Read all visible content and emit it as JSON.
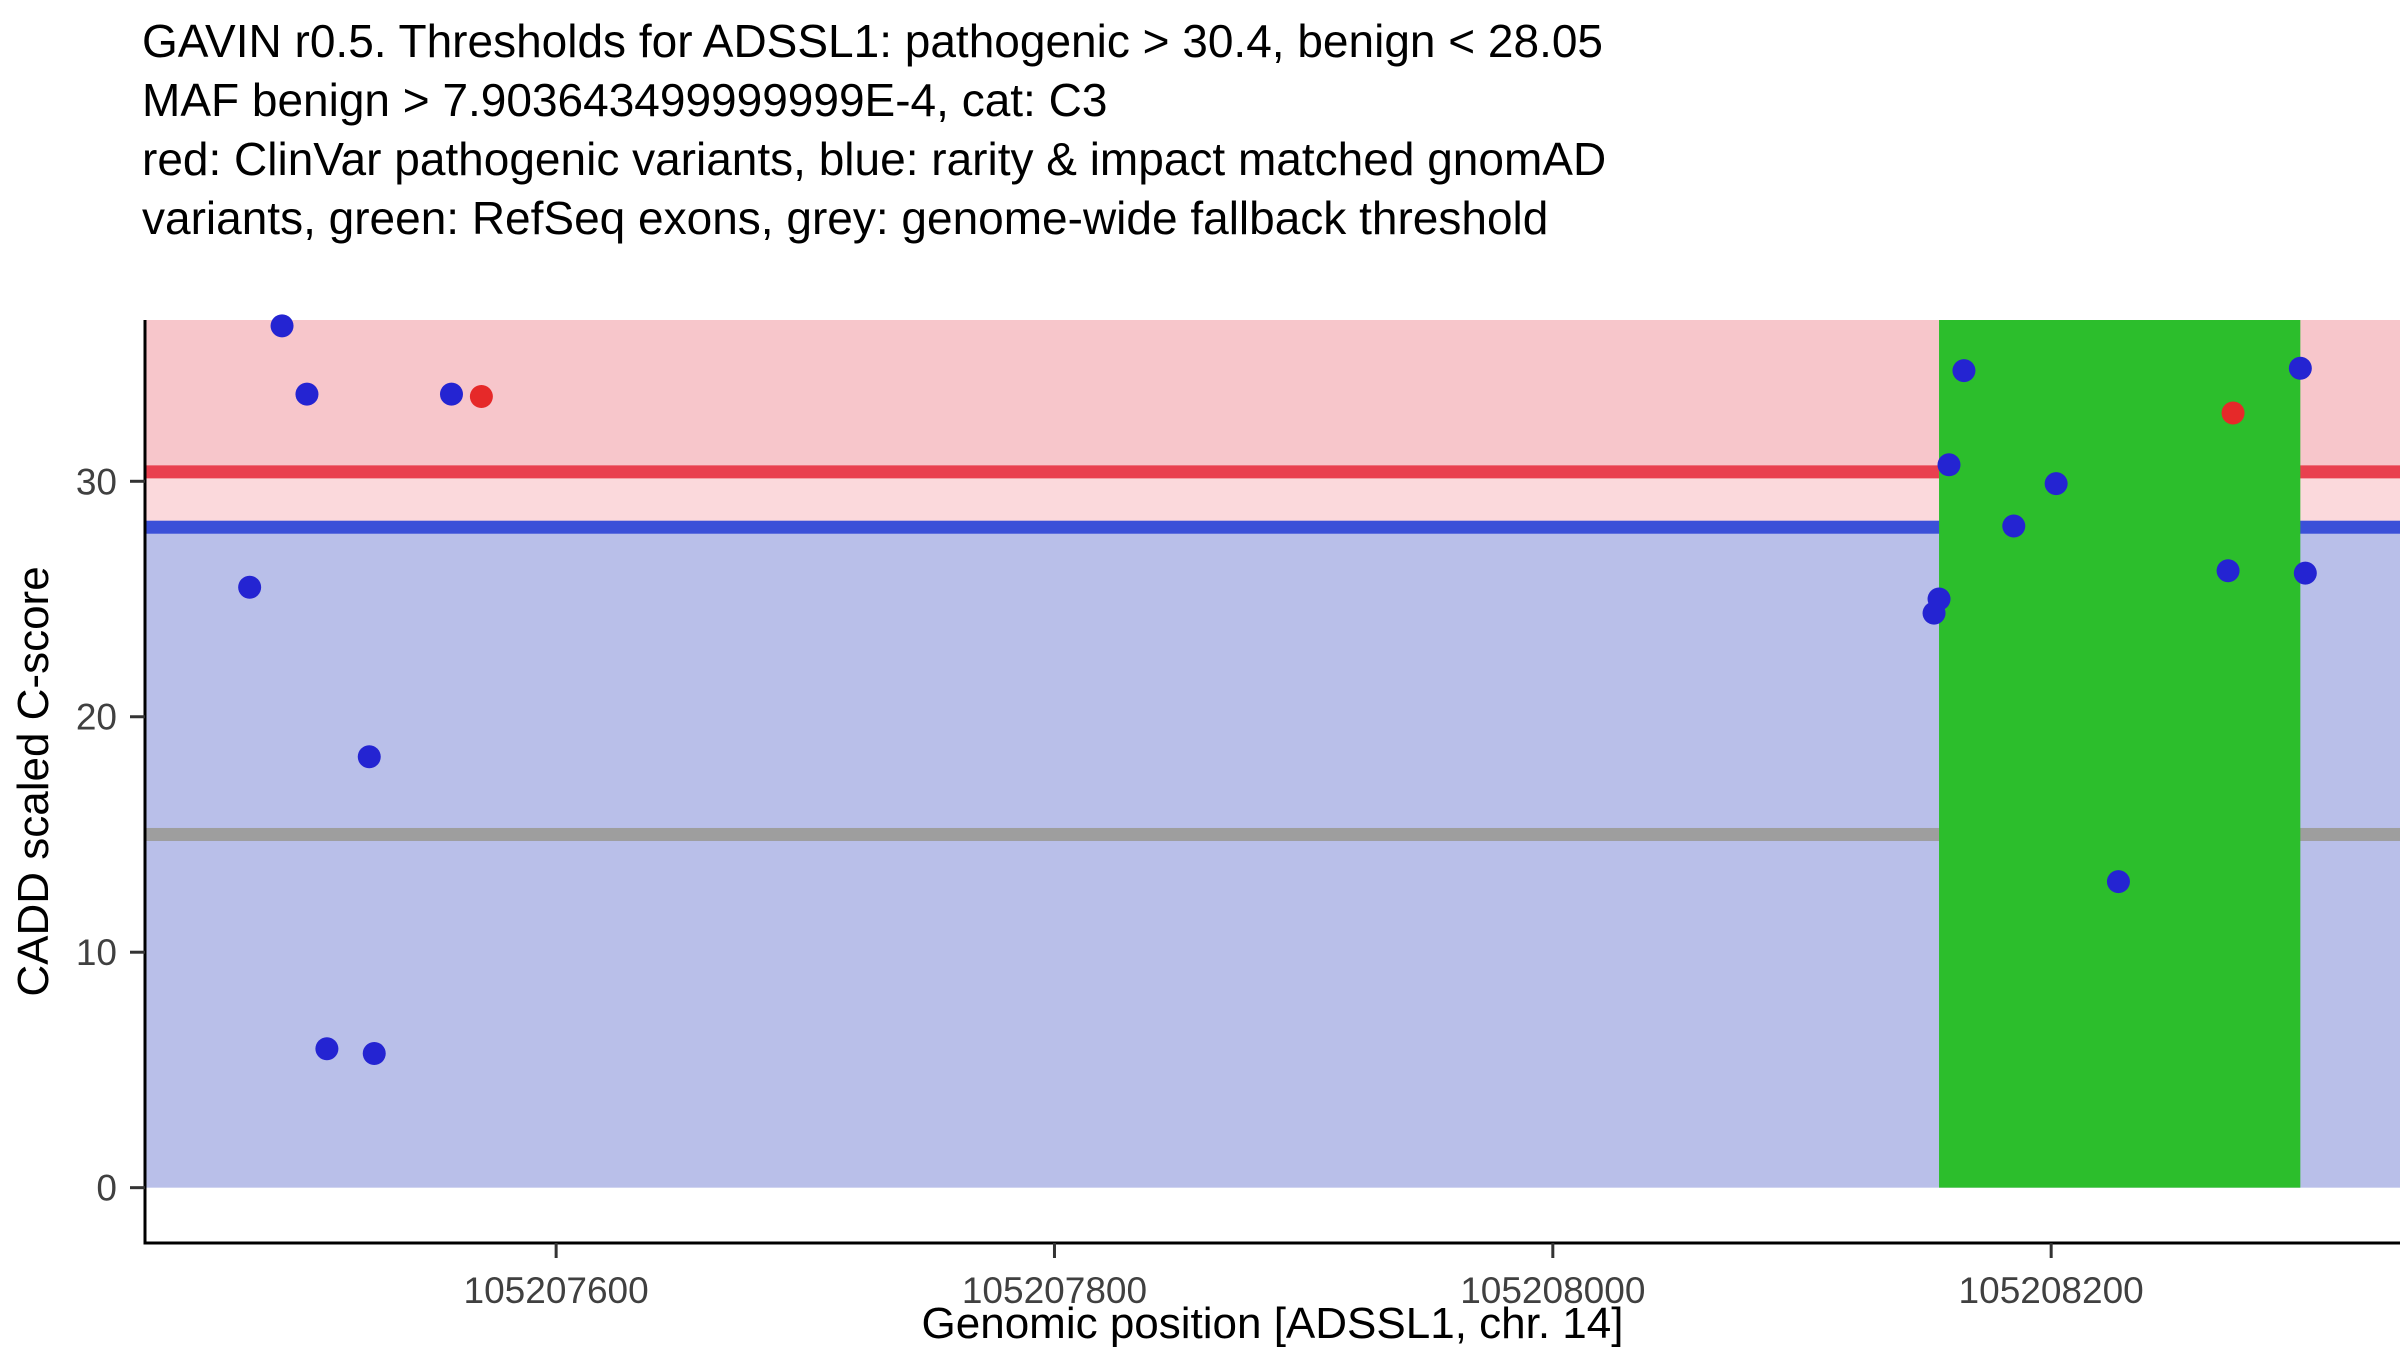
{
  "title": {
    "line1": "GAVIN r0.5. Thresholds for ADSSL1: pathogenic > 30.4, benign < 28.05",
    "line2": "MAF benign > 7.903643499999999E-4, cat: C3",
    "line3": "red: ClinVar pathogenic variants, blue: rarity & impact matched gnomAD",
    "line4": "variants, green: RefSeq exons, grey: genome-wide fallback threshold"
  },
  "chart_data": {
    "type": "scatter",
    "title": "GAVIN r0.5. Thresholds for ADSSL1: pathogenic > 30.4, benign < 28.05 MAF benign > 7.903643499999999E-4, cat: C3",
    "xlabel": "Genomic position [ADSSL1, chr. 14]",
    "ylabel": "CADD scaled C-score",
    "xlim": [
      105207435,
      105208340
    ],
    "ylim": [
      -2.35,
      36.85
    ],
    "x_ticks": [
      105207600,
      105207800,
      105208000,
      105208200
    ],
    "y_ticks": [
      0,
      10,
      20,
      30
    ],
    "grid": false,
    "legend": "none",
    "thresholds": {
      "pathogenic_gt": 30.4,
      "benign_lt": 28.05,
      "maf_benign_gt": "7.903643499999999E-4",
      "category": "C3",
      "genome_wide_fallback": 15
    },
    "bands": [
      {
        "name": "pathogenic-band",
        "from": 30.4,
        "to": 36.85,
        "color": "#f7c6cb"
      },
      {
        "name": "intermediate-band",
        "from": 28.05,
        "to": 30.4,
        "color": "#fbd9dc"
      },
      {
        "name": "benign-band",
        "from": 0,
        "to": 28.05,
        "color": "#b9bfe9"
      }
    ],
    "threshold_lines": [
      {
        "name": "pathogenic-threshold-line",
        "y": 30.4,
        "color": "#e9404f"
      },
      {
        "name": "benign-threshold-line",
        "y": 28.05,
        "color": "#3b50d8"
      },
      {
        "name": "genome-wide-fallback-line",
        "y": 15,
        "color": "#9e9e9e"
      }
    ],
    "exon_region": {
      "name": "refseq-exon",
      "x_from": 105208155,
      "x_to": 105208300,
      "y_from": 0,
      "y_to": 36.85,
      "color": "#2cbe2c"
    },
    "series": [
      {
        "id": "gnomad",
        "name": "rarity & impact matched gnomAD variants",
        "color": "#2424d2",
        "points": [
          [
            105207490,
            36.6
          ],
          [
            105207500,
            33.7
          ],
          [
            105207558,
            33.7
          ],
          [
            105207477,
            25.5
          ],
          [
            105207525,
            18.3
          ],
          [
            105207508,
            5.9
          ],
          [
            105207527,
            5.7
          ],
          [
            105208165,
            34.7
          ],
          [
            105208300,
            34.8
          ],
          [
            105208159,
            30.7
          ],
          [
            105208202,
            29.9
          ],
          [
            105208185,
            28.1
          ],
          [
            105208155,
            25.0
          ],
          [
            105208153,
            24.4
          ],
          [
            105208271,
            26.2
          ],
          [
            105208302,
            26.1
          ],
          [
            105208227,
            13.0
          ]
        ]
      },
      {
        "id": "clinvar",
        "name": "ClinVar pathogenic variants",
        "color": "#e62929",
        "points": [
          [
            105207570,
            33.6
          ],
          [
            105208273,
            32.9
          ]
        ]
      }
    ],
    "colors": {
      "axis": "#000000",
      "tick": "#333333",
      "tick_label": "#404040",
      "axis_title": "#000000"
    }
  }
}
